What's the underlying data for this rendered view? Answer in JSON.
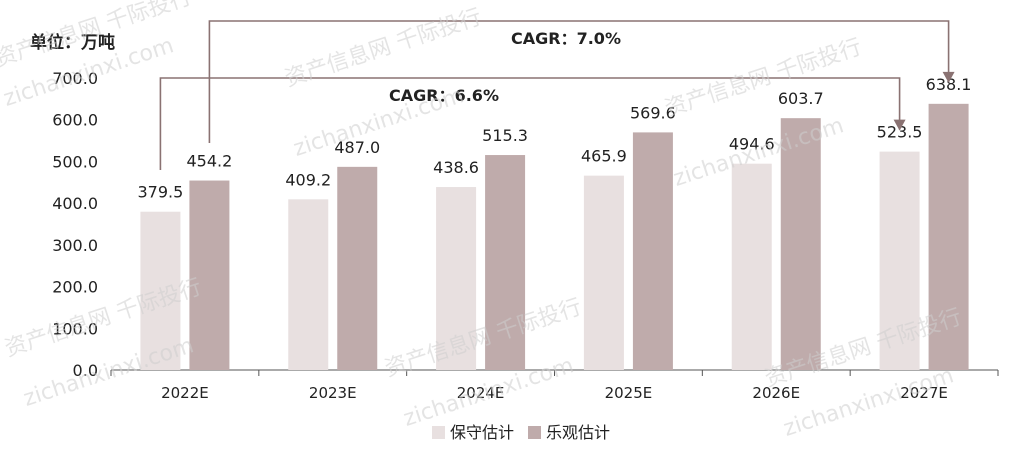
{
  "chart_data": {
    "type": "bar",
    "unit_label": "单位：万吨",
    "categories": [
      "2022E",
      "2023E",
      "2024E",
      "2025E",
      "2026E",
      "2027E"
    ],
    "series": [
      {
        "name": "保守估计",
        "values": [
          379.5,
          409.2,
          438.6,
          465.9,
          494.6,
          523.5
        ],
        "color": "#e8e0e0"
      },
      {
        "name": "乐观估计",
        "values": [
          454.2,
          487.0,
          515.3,
          569.6,
          603.7,
          638.1
        ],
        "color": "#bfabab"
      }
    ],
    "ylim": [
      0,
      700
    ],
    "yticks": [
      0,
      100,
      200,
      300,
      400,
      500,
      600,
      700
    ],
    "ytick_labels": [
      "0.0",
      "100.0",
      "200.0",
      "300.0",
      "400.0",
      "500.0",
      "600.0",
      "700.0"
    ],
    "annotations": [
      {
        "label": "CAGR：6.6%",
        "series": "保守估计",
        "from": "2022E",
        "to": "2027E"
      },
      {
        "label": "CAGR：7.0%",
        "series": "乐观估计",
        "from": "2022E",
        "to": "2027E"
      }
    ],
    "legend_position": "bottom-center",
    "line_color": "#8a7272"
  },
  "watermarks": [
    "资产信息网  千际投行",
    "zichanxinxi.com"
  ]
}
